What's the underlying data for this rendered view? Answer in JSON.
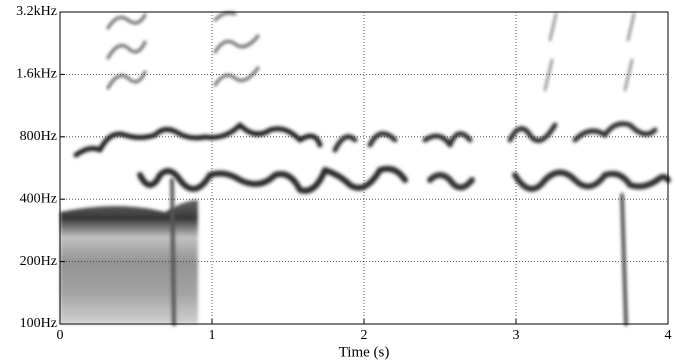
{
  "chart_data": {
    "type": "spectrogram",
    "xlabel": "Time (s)",
    "xlim": [
      0,
      4
    ],
    "xticks": [
      0,
      1,
      2,
      3,
      4
    ],
    "ylim": [
      100,
      3200
    ],
    "yscale": "log",
    "yticks": [
      {
        "value": 100,
        "label": "100Hz"
      },
      {
        "value": 200,
        "label": "200Hz"
      },
      {
        "value": 400,
        "label": "400Hz"
      },
      {
        "value": 800,
        "label": "800Hz"
      },
      {
        "value": 1600,
        "label": "1.6kHz"
      },
      {
        "value": 3200,
        "label": "3.2kHz"
      }
    ],
    "grid": true
  }
}
